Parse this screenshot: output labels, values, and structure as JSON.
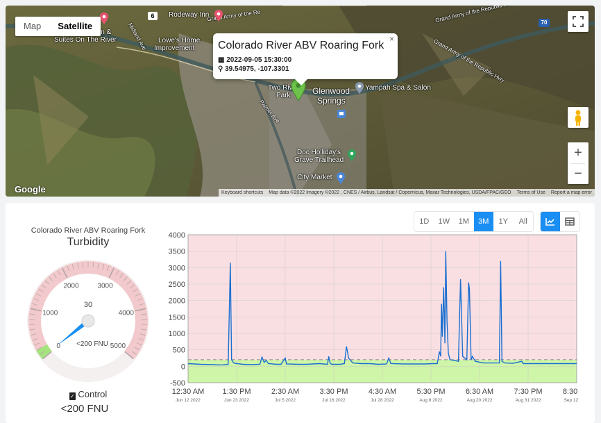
{
  "map": {
    "type_buttons": [
      "Map",
      "Satellite"
    ],
    "active_type": "Satellite",
    "info_window": {
      "title": "Colorado River ABV Roaring Fork",
      "datetime": "2022-09-05 15:30:00",
      "coords": "39.54975, -107.3301",
      "close": "×"
    },
    "places": {
      "rodeway": "Rodeway Inn",
      "quality1": "Quality Inn &",
      "quality2": "Suites On The River",
      "lowes1": "Lowe's Home",
      "lowes2": "Improvement",
      "tworivers1": "Two Rive",
      "tworivers2": "Park",
      "glenwood1": "Glenwood",
      "glenwood2": "Springs",
      "yampah": "Yampah Spa & Salon",
      "doc1": "Doc Holliday's",
      "doc2": "Grave Trailhead",
      "citymarket": "City Market",
      "road1": "Grand Army of the Republic Hwy",
      "road2": "Grand Army of the Re",
      "road3": "Grand Army of the Republic Hwy",
      "road4": "Midland Ave",
      "road5": "Palmer Ave"
    },
    "shield_6": "6",
    "shield_70": "70",
    "google_logo": "Google",
    "attribution": [
      "Keyboard shortcuts",
      "Map data ©2022 Imagery ©2022 , CNES / Airbus, Landsat / Copernicus, Maxar Technologies, USDA/FPAC/GEO",
      "Terms of Use",
      "Report a map error"
    ],
    "zoom_in": "+",
    "zoom_out": "−",
    "fullscreen_icon": "fullscreen-icon",
    "pegman_icon": "pegman-icon"
  },
  "gauge": {
    "site": "Colorado River ABV Roaring Fork",
    "parameter": "Turbidity",
    "value": 30,
    "value_label": "30",
    "unit_label": "<200 FNU",
    "min": 0,
    "max": 5000,
    "major_ticks": [
      "0",
      "1000",
      "2000",
      "3000",
      "4000",
      "5000"
    ],
    "colors": {
      "ring": "#f2c9cc",
      "green": "#a5e37f",
      "needle": "#1a8ef2",
      "tick": "#b4a6a8"
    }
  },
  "control": {
    "label": "Control",
    "value": "<200 FNU",
    "checked": true
  },
  "range_buttons": [
    "1D",
    "1W",
    "1M",
    "3M",
    "1Y",
    "All"
  ],
  "range_selected": "3M",
  "view_buttons": [
    "chart-icon",
    "table-icon"
  ],
  "view_selected": "chart-icon",
  "chart_data": {
    "type": "line",
    "title": "",
    "xlabel": "",
    "ylabel": "",
    "ylim": [
      -500,
      4000
    ],
    "yticks": [
      "4000",
      "3500",
      "3000",
      "2500",
      "2000",
      "1500",
      "1000",
      "500",
      "0",
      "-500"
    ],
    "xticks": [
      {
        "time": "12:30 AM",
        "date": "Jun 12 2022"
      },
      {
        "time": "1:30 PM",
        "date": "Jun 23 2022"
      },
      {
        "time": "2:30 AM",
        "date": "Jul 5 2022"
      },
      {
        "time": "3:30 PM",
        "date": "Jul 16 2022"
      },
      {
        "time": "4:30 AM",
        "date": "Jul 28 2022"
      },
      {
        "time": "5:30 PM",
        "date": "Aug 8 2022"
      },
      {
        "time": "6:30 AM",
        "date": "Aug 20 2022"
      },
      {
        "time": "7:30 PM",
        "date": "Aug 31 2022"
      },
      {
        "time": "8:30 AM",
        "date": "Sep 12 2022"
      }
    ],
    "bands": [
      {
        "from": -500,
        "to": 200,
        "color": "#cff5a8"
      },
      {
        "from": 200,
        "to": 4000,
        "color": "#f9dfe2"
      }
    ],
    "threshold": 200,
    "x_days_span": 92,
    "series": [
      {
        "color": "#1a6fd1",
        "points": [
          [
            0,
            80
          ],
          [
            3,
            60
          ],
          [
            6,
            50
          ],
          [
            8,
            40
          ],
          [
            9.5,
            60
          ],
          [
            10,
            3150
          ],
          [
            10.3,
            200
          ],
          [
            10.7,
            120
          ],
          [
            11,
            90
          ],
          [
            13,
            60
          ],
          [
            15,
            50
          ],
          [
            17,
            60
          ],
          [
            17.5,
            280
          ],
          [
            18,
            120
          ],
          [
            18.5,
            180
          ],
          [
            19,
            80
          ],
          [
            21,
            60
          ],
          [
            22,
            60
          ],
          [
            23,
            250
          ],
          [
            23.3,
            70
          ],
          [
            26,
            60
          ],
          [
            28,
            60
          ],
          [
            31,
            80
          ],
          [
            33,
            60
          ],
          [
            33.3,
            300
          ],
          [
            33.6,
            100
          ],
          [
            34,
            60
          ],
          [
            36,
            60
          ],
          [
            37,
            80
          ],
          [
            37.5,
            600
          ],
          [
            38,
            250
          ],
          [
            39,
            100
          ],
          [
            41,
            80
          ],
          [
            43,
            80
          ],
          [
            45,
            60
          ],
          [
            47,
            70
          ],
          [
            47.5,
            250
          ],
          [
            48,
            80
          ],
          [
            51,
            70
          ],
          [
            54,
            70
          ],
          [
            56,
            70
          ],
          [
            58,
            80
          ],
          [
            59,
            80
          ],
          [
            59.5,
            450
          ],
          [
            59.8,
            300
          ],
          [
            60,
            1900
          ],
          [
            60.2,
            900
          ],
          [
            60.5,
            2400
          ],
          [
            60.8,
            700
          ],
          [
            61,
            3500
          ],
          [
            61.3,
            1400
          ],
          [
            61.6,
            400
          ],
          [
            62,
            200
          ],
          [
            63,
            180
          ],
          [
            64,
            150
          ],
          [
            64.5,
            2650
          ],
          [
            65,
            300
          ],
          [
            66,
            200
          ],
          [
            66.4,
            2550
          ],
          [
            66.6,
            2350
          ],
          [
            67,
            200
          ],
          [
            67.3,
            300
          ],
          [
            68,
            150
          ],
          [
            70,
            100
          ],
          [
            72,
            100
          ],
          [
            73,
            100
          ],
          [
            73.7,
            100
          ],
          [
            74,
            3200
          ],
          [
            74.3,
            150
          ],
          [
            75,
            100
          ],
          [
            77,
            90
          ],
          [
            79,
            150
          ],
          [
            79.3,
            80
          ],
          [
            82,
            80
          ],
          [
            85,
            80
          ],
          [
            88,
            80
          ],
          [
            92,
            80
          ]
        ]
      }
    ]
  }
}
